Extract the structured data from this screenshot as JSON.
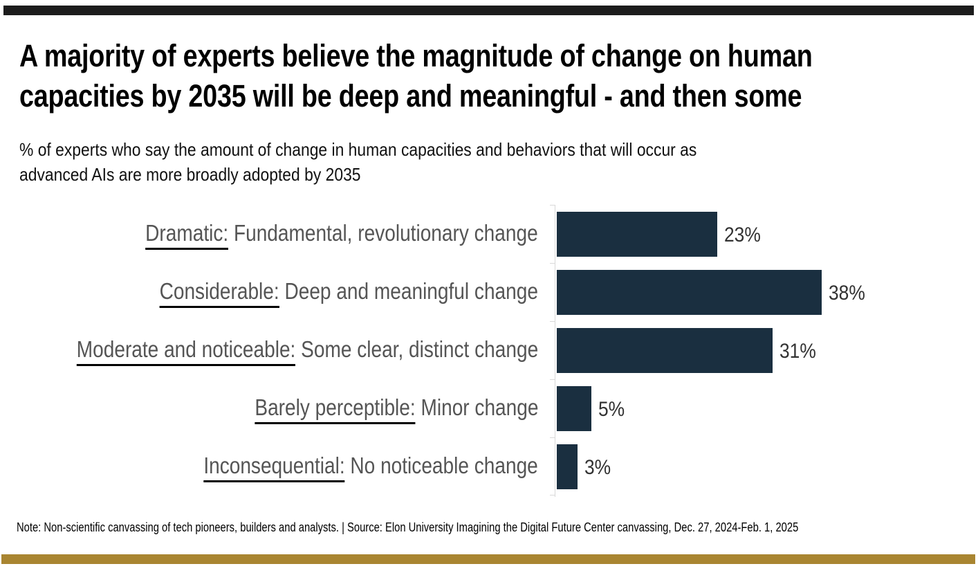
{
  "chart_data": {
    "type": "bar",
    "orientation": "horizontal",
    "title": "A majority of experts believe the magnitude of change on human capacities by 2035 will be deep and meaningful - and then some",
    "title_lines": [
      "A majority of experts believe the magnitude of change on human",
      "capacities by 2035 will be deep and meaningful - and then some"
    ],
    "subtitle_lines": [
      "% of experts who say the amount of change in human capacities and behaviors that will occur as",
      "advanced AIs are more broadly adopted by 2035"
    ],
    "categories": [
      {
        "name": "Dramatic:",
        "desc": " Fundamental, revolutionary change"
      },
      {
        "name": "Considerable:",
        "desc": " Deep and meaningful change"
      },
      {
        "name": "Moderate and noticeable:",
        "desc": " Some clear, distinct change"
      },
      {
        "name": "Barely perceptible:",
        "desc": " Minor change"
      },
      {
        "name": "Inconsequential:",
        "desc": " No noticeable change"
      }
    ],
    "values": [
      23,
      38,
      31,
      5,
      3
    ],
    "data_labels": [
      "23%",
      "38%",
      "31%",
      "5%",
      "3%"
    ],
    "xlim": [
      0,
      60
    ],
    "grid": false,
    "bar_color": "#1a2f40"
  },
  "note": "Note: Non-scientific canvassing of tech pioneers, builders and analysts. | Source: Elon University Imagining the Digital Future Center canvassing,  Dec. 27, 2024-Feb. 1, 2025",
  "colors": {
    "top_bar": "#1c1c1c",
    "bottom_bar": "#a98531"
  }
}
